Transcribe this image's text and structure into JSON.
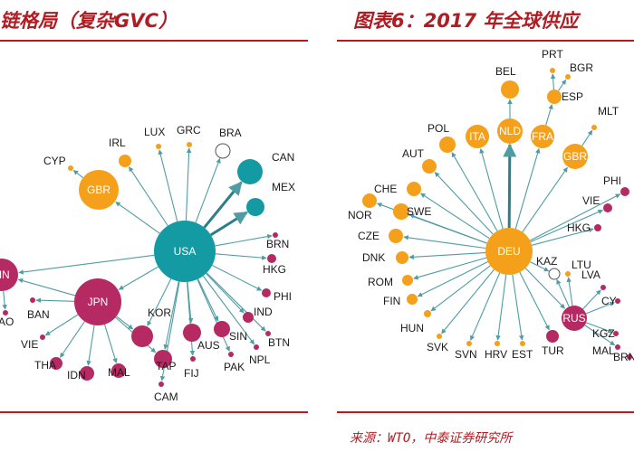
{
  "header": {
    "left_title": "链格局（复杂GVC）",
    "right_title": "图表6：2017 年全球供应"
  },
  "footer": {
    "source": "来源：WTO，中泰证券研究所"
  },
  "colors": {
    "teal": "#139aa3",
    "orange": "#f4a01b",
    "magenta": "#b52a63",
    "edge": "#4f9ca5",
    "accent": "#b11c23"
  },
  "left_network": {
    "nodes": [
      {
        "id": "USA",
        "label": "USA",
        "color": "teal",
        "hub": true
      },
      {
        "id": "CAN",
        "label": "CAN",
        "color": "teal"
      },
      {
        "id": "MEX",
        "label": "MEX",
        "color": "teal"
      },
      {
        "id": "GBR",
        "label": "GBR",
        "color": "orange",
        "hub": true
      },
      {
        "id": "IRL",
        "label": "IRL",
        "color": "orange"
      },
      {
        "id": "CYP",
        "label": "CYP",
        "color": "orange"
      },
      {
        "id": "LUX",
        "label": "LUX",
        "color": "orange"
      },
      {
        "id": "GRC",
        "label": "GRC",
        "color": "orange"
      },
      {
        "id": "BRA",
        "label": "BRA",
        "color": "hollow"
      },
      {
        "id": "BRN",
        "label": "BRN",
        "color": "magenta"
      },
      {
        "id": "HKG",
        "label": "HKG",
        "color": "magenta"
      },
      {
        "id": "PHI",
        "label": "PHI",
        "color": "magenta"
      },
      {
        "id": "IND",
        "label": "IND",
        "color": "magenta"
      },
      {
        "id": "BTN",
        "label": "BTN",
        "color": "magenta"
      },
      {
        "id": "NPL",
        "label": "NPL",
        "color": "magenta"
      },
      {
        "id": "SIN",
        "label": "SIN",
        "color": "magenta"
      },
      {
        "id": "PAK",
        "label": "PAK",
        "color": "magenta"
      },
      {
        "id": "AUS",
        "label": "AUS",
        "color": "magenta"
      },
      {
        "id": "FIJ",
        "label": "FIJ",
        "color": "magenta"
      },
      {
        "id": "TAP",
        "label": "TAP",
        "color": "magenta"
      },
      {
        "id": "CAM",
        "label": "CAM",
        "color": "magenta"
      },
      {
        "id": "KOR",
        "label": "KOR",
        "color": "magenta"
      },
      {
        "id": "JPN",
        "label": "JPN",
        "color": "magenta",
        "hub": true
      },
      {
        "id": "MAL",
        "label": "MAL",
        "color": "magenta"
      },
      {
        "id": "IDN",
        "label": "IDN",
        "color": "magenta"
      },
      {
        "id": "THA",
        "label": "THA",
        "color": "magenta"
      },
      {
        "id": "VIE",
        "label": "VIE",
        "color": "magenta"
      },
      {
        "id": "BAN",
        "label": "BAN",
        "color": "magenta"
      },
      {
        "id": "AO",
        "label": "AO",
        "color": "magenta"
      },
      {
        "id": "CHN",
        "label": "HN",
        "color": "magenta",
        "hub": true
      }
    ]
  },
  "right_network": {
    "nodes": [
      {
        "id": "DEU",
        "label": "DEU",
        "color": "orange",
        "hub": true
      },
      {
        "id": "NLD",
        "label": "NLD",
        "color": "orange",
        "hub": true
      },
      {
        "id": "ITA",
        "label": "ITA",
        "color": "orange",
        "hub": true
      },
      {
        "id": "FRA",
        "label": "FRA",
        "color": "orange",
        "hub": true
      },
      {
        "id": "GBR",
        "label": "GBR",
        "color": "orange",
        "hub": true
      },
      {
        "id": "BEL",
        "label": "BEL",
        "color": "orange"
      },
      {
        "id": "PRT",
        "label": "PRT",
        "color": "orange"
      },
      {
        "id": "BGR",
        "label": "BGR",
        "color": "orange"
      },
      {
        "id": "ESP",
        "label": "ESP",
        "color": "orange"
      },
      {
        "id": "MLT",
        "label": "MLT",
        "color": "orange"
      },
      {
        "id": "POL",
        "label": "POL",
        "color": "orange"
      },
      {
        "id": "AUT",
        "label": "AUT",
        "color": "orange"
      },
      {
        "id": "CHE",
        "label": "CHE",
        "color": "orange"
      },
      {
        "id": "SWE",
        "label": "SWE",
        "color": "orange"
      },
      {
        "id": "NOR",
        "label": "NOR",
        "color": "orange"
      },
      {
        "id": "CZE",
        "label": "CZE",
        "color": "orange"
      },
      {
        "id": "DNK",
        "label": "DNK",
        "color": "orange"
      },
      {
        "id": "ROM",
        "label": "ROM",
        "color": "orange"
      },
      {
        "id": "FIN",
        "label": "FIN",
        "color": "orange"
      },
      {
        "id": "HUN",
        "label": "HUN",
        "color": "orange"
      },
      {
        "id": "SVK",
        "label": "SVK",
        "color": "orange"
      },
      {
        "id": "SVN",
        "label": "SVN",
        "color": "orange"
      },
      {
        "id": "HRV",
        "label": "HRV",
        "color": "orange"
      },
      {
        "id": "EST",
        "label": "EST",
        "color": "orange"
      },
      {
        "id": "TUR",
        "label": "TUR",
        "color": "magenta"
      },
      {
        "id": "RUS",
        "label": "RUS",
        "color": "magenta",
        "hub": true
      },
      {
        "id": "KAZ",
        "label": "KAZ",
        "color": "hollow"
      },
      {
        "id": "LTU",
        "label": "LTU",
        "color": "orange"
      },
      {
        "id": "LVA",
        "label": "LVA",
        "color": "magenta"
      },
      {
        "id": "CY",
        "label": "CY",
        "color": "magenta"
      },
      {
        "id": "KGZ",
        "label": "KGZ",
        "color": "magenta"
      },
      {
        "id": "MAL",
        "label": "MAL",
        "color": "magenta"
      },
      {
        "id": "BRN",
        "label": "BRN",
        "color": "magenta"
      },
      {
        "id": "PHI",
        "label": "PHI",
        "color": "magenta"
      },
      {
        "id": "VIE",
        "label": "VIE",
        "color": "magenta"
      },
      {
        "id": "HKG",
        "label": "HKG",
        "color": "magenta"
      }
    ]
  }
}
